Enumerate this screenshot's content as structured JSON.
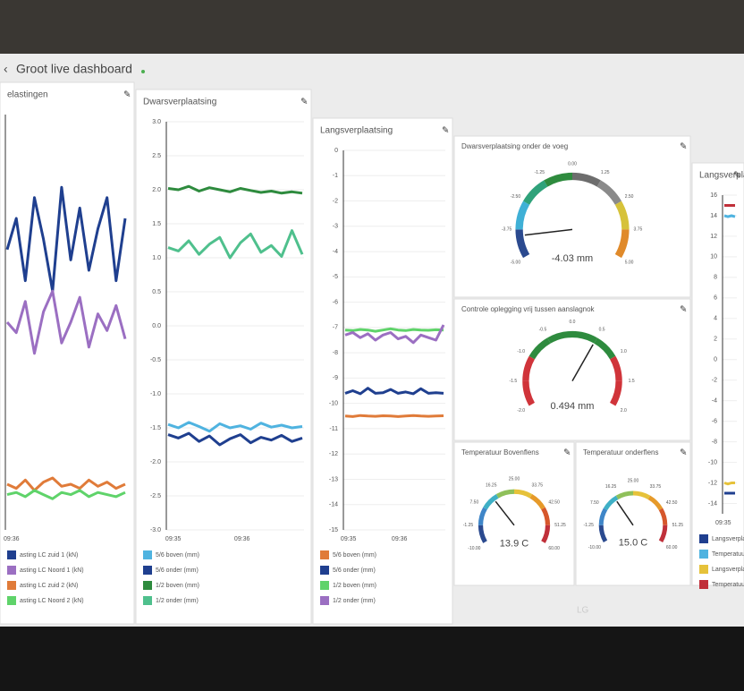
{
  "header": {
    "title": "Groot live dashboard"
  },
  "monitor": {
    "brand": "LG"
  },
  "panels": [
    {
      "type": "line",
      "title": "elastingen",
      "ylim": [
        0,
        200
      ],
      "xtick_labels": [
        "09:36"
      ],
      "series": [
        {
          "name": "asting LC zuid 1 (kN)",
          "color": "#1f3f8f",
          "values": [
            135,
            150,
            120,
            160,
            140,
            115,
            165,
            130,
            155,
            125,
            145,
            160,
            120,
            150
          ]
        },
        {
          "name": "asting LC Noord 1 (kN)",
          "color": "#9b6fc2",
          "values": [
            100,
            95,
            110,
            85,
            105,
            115,
            90,
            100,
            112,
            88,
            104,
            96,
            108,
            92
          ]
        },
        {
          "name": "asting LC zuid 2 (kN)",
          "color": "#e07b39",
          "values": [
            22,
            20,
            24,
            19,
            23,
            25,
            21,
            22,
            20,
            24,
            21,
            23,
            20,
            22
          ]
        },
        {
          "name": "asting LC Noord 2 (kN)",
          "color": "#5fd36a",
          "values": [
            17,
            18,
            16,
            19,
            17,
            15,
            18,
            17,
            19,
            16,
            18,
            17,
            16,
            18
          ]
        }
      ]
    },
    {
      "type": "line",
      "title": "Dwarsverplaatsing",
      "ylim": [
        -3,
        3
      ],
      "yticks": [
        {
          "value": 3,
          "label": "3.0"
        },
        2.5,
        {
          "value": 2,
          "label": "2.0"
        },
        1.5,
        {
          "value": 1,
          "label": "1.0"
        },
        0.5,
        {
          "value": 0,
          "label": "0.0"
        },
        -0.5,
        {
          "value": -1,
          "label": "-1.0"
        },
        -1.5,
        {
          "value": -2,
          "label": "-2.0"
        },
        -2.5,
        {
          "value": -3,
          "label": "-3.0"
        }
      ],
      "xtick_labels": [
        "09:35",
        "09:36"
      ],
      "series": [
        {
          "name": "5/6 boven (mm)",
          "color": "#4fb3e0",
          "values": [
            -1.45,
            -1.5,
            -1.42,
            -1.48,
            -1.55,
            -1.44,
            -1.5,
            -1.47,
            -1.52,
            -1.43,
            -1.49,
            -1.46,
            -1.5,
            -1.48
          ]
        },
        {
          "name": "5/6 onder (mm)",
          "color": "#1f3f8f",
          "values": [
            -1.6,
            -1.65,
            -1.58,
            -1.7,
            -1.62,
            -1.75,
            -1.66,
            -1.6,
            -1.72,
            -1.64,
            -1.68,
            -1.61,
            -1.7,
            -1.65
          ]
        },
        {
          "name": "1/2 boven (mm)",
          "color": "#2e8b3e",
          "values": [
            2.02,
            2.0,
            2.05,
            1.98,
            2.03,
            2.0,
            1.97,
            2.02,
            1.99,
            1.96,
            1.98,
            1.95,
            1.97,
            1.95
          ]
        },
        {
          "name": "1/2 onder (mm)",
          "color": "#4fc08d",
          "values": [
            1.15,
            1.1,
            1.25,
            1.05,
            1.2,
            1.3,
            1.0,
            1.22,
            1.35,
            1.08,
            1.18,
            1.02,
            1.4,
            1.05
          ]
        }
      ]
    },
    {
      "type": "line",
      "title": "Langsverplaatsing",
      "ylim": [
        -15,
        0
      ],
      "yticks": [
        0,
        -1,
        -2,
        -3,
        -4,
        -5,
        -6,
        -7,
        -8,
        -9,
        -10,
        -11,
        -12,
        -13,
        -14,
        -15
      ],
      "xtick_labels": [
        "09:35",
        "09:36"
      ],
      "series": [
        {
          "name": "5/6 boven (mm)",
          "color": "#e07b39",
          "values": [
            -10.5,
            -10.52,
            -10.48,
            -10.5,
            -10.51,
            -10.49,
            -10.5,
            -10.52,
            -10.5,
            -10.48,
            -10.5,
            -10.51,
            -10.5,
            -10.49
          ]
        },
        {
          "name": "5/6 onder (mm)",
          "color": "#1f3f8f",
          "values": [
            -9.6,
            -9.5,
            -9.62,
            -9.4,
            -9.6,
            -9.58,
            -9.45,
            -9.6,
            -9.55,
            -9.62,
            -9.42,
            -9.6,
            -9.58,
            -9.6
          ]
        },
        {
          "name": "1/2 boven (mm)",
          "color": "#5fd36a",
          "values": [
            -7.1,
            -7.12,
            -7.08,
            -7.1,
            -7.15,
            -7.1,
            -7.05,
            -7.1,
            -7.12,
            -7.08,
            -7.1,
            -7.11,
            -7.09,
            -7.1
          ]
        },
        {
          "name": "1/2 onder (mm)",
          "color": "#9b6fc2",
          "values": [
            -7.3,
            -7.2,
            -7.4,
            -7.25,
            -7.5,
            -7.3,
            -7.2,
            -7.45,
            -7.35,
            -7.6,
            -7.3,
            -7.4,
            -7.5,
            -6.9
          ]
        }
      ]
    },
    {
      "type": "gauge",
      "title": "Dwarsverplaatsing onder de voeg",
      "value": -4.03,
      "value_label": "-4.03 mm",
      "ticks": [
        {
          "value": -5,
          "label": "-5.00"
        },
        {
          "value": -3.75,
          "label": "-3.75"
        },
        {
          "value": -2.5,
          "label": "-2.50"
        },
        {
          "value": -1.25,
          "label": "-1.25"
        },
        {
          "value": 0,
          "label": "0.00"
        },
        {
          "value": 1.25,
          "label": "1.25"
        },
        {
          "value": 2.5,
          "label": "2.50"
        },
        {
          "value": 3.75,
          "label": "3.75"
        },
        {
          "value": 5,
          "label": "5.00"
        }
      ],
      "colors": [
        "#2b4a8f",
        "#3fb0d6",
        "#2fa27a",
        "#2e8b3e",
        "#6d6d6d",
        "#8a8a8a",
        "#d6c23a",
        "#e08a2a"
      ]
    },
    {
      "type": "gauge",
      "title": "Controle oplegging vrij tussen aanslagnok",
      "value": 0.494,
      "value_label": "0.494 mm",
      "ticks": [
        {
          "value": -2,
          "label": "-2.0"
        },
        -1.5,
        {
          "value": -1,
          "label": "-1.0"
        },
        -0.5,
        {
          "value": 0,
          "label": "0.0"
        },
        0.5,
        {
          "value": 1,
          "label": "1.0"
        },
        1.5,
        {
          "value": 2,
          "label": "2.0"
        }
      ],
      "colors": [
        "#d0343a",
        "#d0343a",
        "#2e8b3e",
        "#2e8b3e",
        "#2e8b3e",
        "#2e8b3e",
        "#d0343a",
        "#d0343a"
      ]
    },
    {
      "type": "gauge",
      "title": "Temperatuur Bovenflens",
      "value": 13.9,
      "value_label": "13.9 C",
      "ticks": [
        {
          "value": -10,
          "label": "-10.00"
        },
        -1.25,
        {
          "value": 7.5,
          "label": "7.50"
        },
        16.25,
        {
          "value": 25,
          "label": "25.00"
        },
        33.75,
        {
          "value": 42.5,
          "label": "42.50"
        },
        51.25,
        {
          "value": 60,
          "label": "60.00"
        }
      ],
      "colors": [
        "#2b4a8f",
        "#3f86c8",
        "#3fb0c6",
        "#8fc05a",
        "#e6c23a",
        "#e69a2a",
        "#d6572c",
        "#c0303a"
      ]
    },
    {
      "type": "gauge",
      "title": "Temperatuur onderflens",
      "value": 15.0,
      "value_label": "15.0 C",
      "ticks": [
        {
          "value": -10,
          "label": "-10.00"
        },
        -1.25,
        {
          "value": 7.5,
          "label": "7.50"
        },
        16.25,
        {
          "value": 25,
          "label": "25.00"
        },
        33.75,
        {
          "value": 42.5,
          "label": "42.50"
        },
        51.25,
        {
          "value": 60,
          "label": "60.00"
        }
      ],
      "colors": [
        "#2b4a8f",
        "#3f86c8",
        "#3fb0c6",
        "#8fc05a",
        "#e6c23a",
        "#e69a2a",
        "#d6572c",
        "#c0303a"
      ]
    },
    {
      "type": "line",
      "title": "Langsverplaatsin",
      "ylim": [
        -15,
        16
      ],
      "yticks": [
        16,
        14,
        12,
        10,
        8,
        6,
        4,
        2,
        0,
        -2,
        -4,
        -6,
        -8,
        -10,
        -12,
        -14
      ],
      "xtick_labels": [
        "09:35"
      ],
      "series": [
        {
          "name": "Langsverplaatsing",
          "color": "#1f3f8f",
          "values": [
            -13,
            -13,
            -13,
            -13
          ]
        },
        {
          "name": "Temperatuur bove",
          "color": "#4fb3e0",
          "values": [
            14,
            13.9,
            14,
            13.9
          ]
        },
        {
          "name": "Langsverplaatsing",
          "color": "#e6c23a",
          "values": [
            -12,
            -12.1,
            -12,
            -12
          ]
        },
        {
          "name": "Temperatuur onde",
          "color": "#c0303a",
          "values": [
            15,
            15,
            15,
            15
          ]
        }
      ]
    }
  ]
}
